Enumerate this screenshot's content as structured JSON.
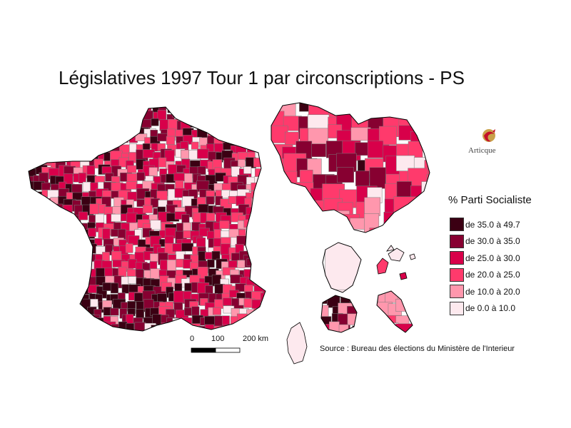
{
  "title": "Législatives 1997 Tour 1 par circonscriptions - PS",
  "legend": {
    "title": "% Parti Socialiste",
    "items": [
      {
        "label": "de 35.0 à 49.7",
        "color": "#3b0013"
      },
      {
        "label": "de 30.0 à 35.0",
        "color": "#870031"
      },
      {
        "label": "de 25.0 à 30.0",
        "color": "#d8004a"
      },
      {
        "label": "de 20.0 à 25.0",
        "color": "#ff3a6c"
      },
      {
        "label": "de 10.0 à 20.0",
        "color": "#ff97ad"
      },
      {
        "label": "de 0.0 à 10.0",
        "color": "#fde9ee"
      }
    ]
  },
  "scale": {
    "labels": [
      "0",
      "100",
      "200 km"
    ]
  },
  "source": "Source : Bureau des élections du Ministère de l'Interieur",
  "logo": {
    "text": "Articque",
    "icon": "articque-logo-icon"
  }
}
